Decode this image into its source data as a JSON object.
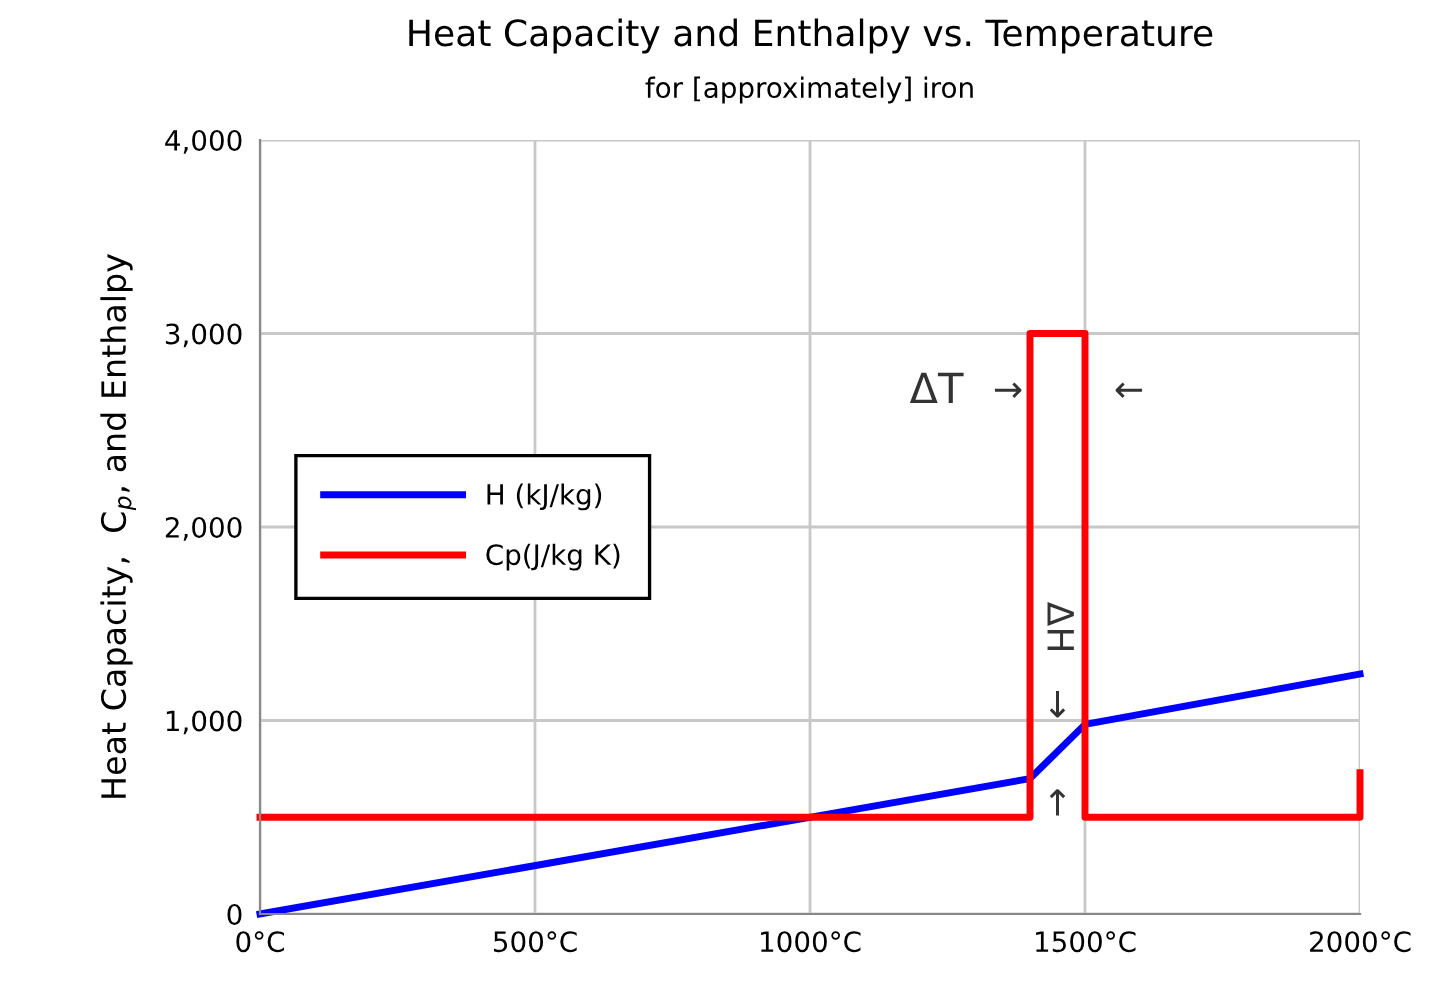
{
  "chart_data": {
    "type": "line",
    "title": "Heat Capacity and Enthalpy vs. Temperature",
    "subtitle": "for [approximately] iron",
    "ylabel": "Heat Capacity,  C$_{p}$, and Enthalpy",
    "series": [
      {
        "name": "H (kJ/kg)",
        "color": "#0000ff",
        "x": [
          0,
          1400,
          1500,
          2000
        ],
        "values": [
          0,
          700,
          980,
          1240
        ]
      },
      {
        "name": "Cp(J/kg K)",
        "color": "#ff0000",
        "x": [
          0,
          1400,
          1400,
          1500,
          1500,
          2000,
          2000
        ],
        "values": [
          500,
          500,
          3000,
          3000,
          500,
          500,
          730
        ]
      }
    ],
    "xlim": [
      0,
      2000
    ],
    "xticks": [
      {
        "value": 0,
        "label": "0°C"
      },
      {
        "value": 500,
        "label": "500°C"
      },
      {
        "value": 1000,
        "label": "1000°C"
      },
      {
        "value": 1500,
        "label": "1500°C"
      },
      {
        "value": 2000,
        "label": "2000°C"
      }
    ],
    "ylim": [
      0,
      4000
    ],
    "yticks": [
      {
        "value": 0,
        "label": "0"
      },
      {
        "value": 1000,
        "label": "1,000"
      },
      {
        "value": 2000,
        "label": "2,000"
      },
      {
        "value": 3000,
        "label": "3,000"
      },
      {
        "value": 4000,
        "label": "4,000"
      }
    ],
    "grid": true,
    "legend": "left",
    "marker": "none",
    "line_style": "solid",
    "annotations": [
      "ΔT",
      "→",
      "←",
      "ΔH",
      "↓",
      "↑"
    ]
  }
}
